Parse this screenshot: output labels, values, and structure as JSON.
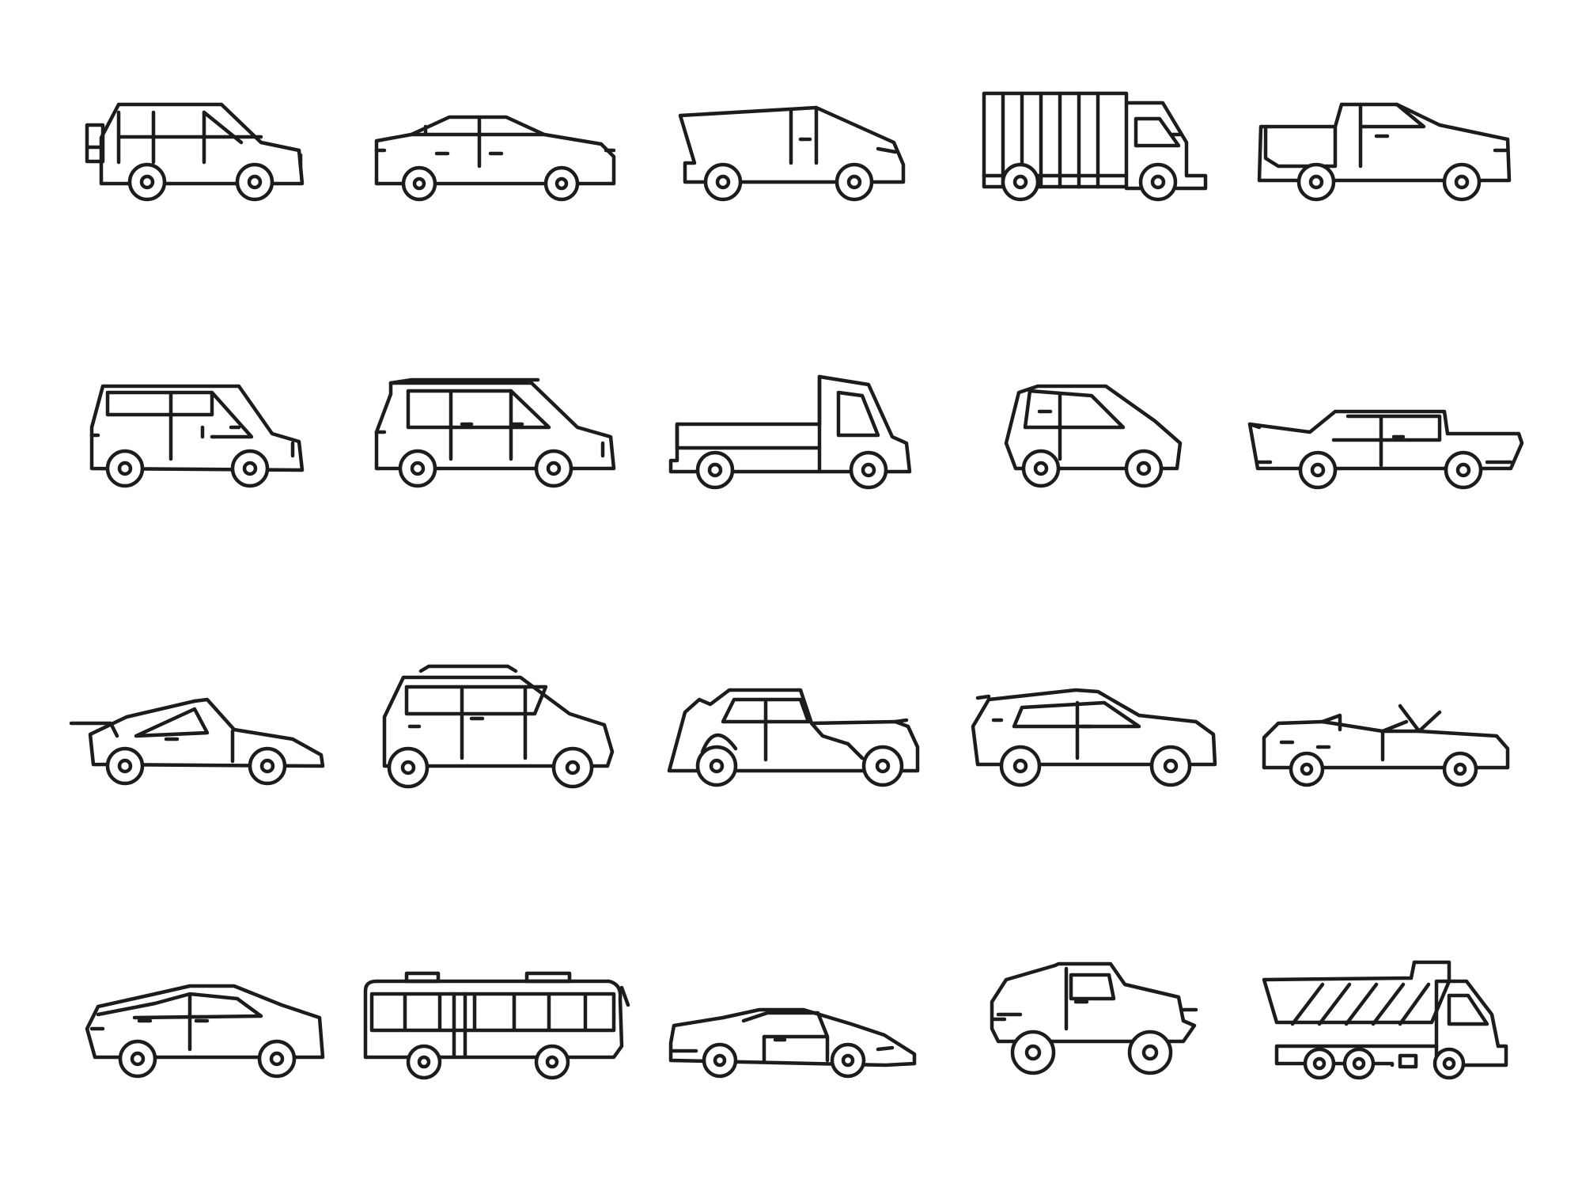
{
  "style": {
    "stroke_color": "#1c1c1c",
    "background": "#ffffff"
  },
  "icons": [
    {
      "name": "suv-spare-wheel-icon"
    },
    {
      "name": "sedan-icon"
    },
    {
      "name": "cybertruck-icon"
    },
    {
      "name": "cargo-truck-icon"
    },
    {
      "name": "pickup-truck-icon"
    },
    {
      "name": "minivan-icon"
    },
    {
      "name": "station-wagon-icon"
    },
    {
      "name": "flatbed-truck-icon"
    },
    {
      "name": "microcar-icon"
    },
    {
      "name": "classic-fin-car-icon"
    },
    {
      "name": "sports-car-spoiler-icon"
    },
    {
      "name": "mini-cooper-icon"
    },
    {
      "name": "retro-car-icon"
    },
    {
      "name": "crossover-suv-icon"
    },
    {
      "name": "convertible-icon"
    },
    {
      "name": "coupe-icon"
    },
    {
      "name": "bus-icon"
    },
    {
      "name": "supercar-icon"
    },
    {
      "name": "offroad-jeep-icon"
    },
    {
      "name": "dump-truck-icon"
    }
  ]
}
